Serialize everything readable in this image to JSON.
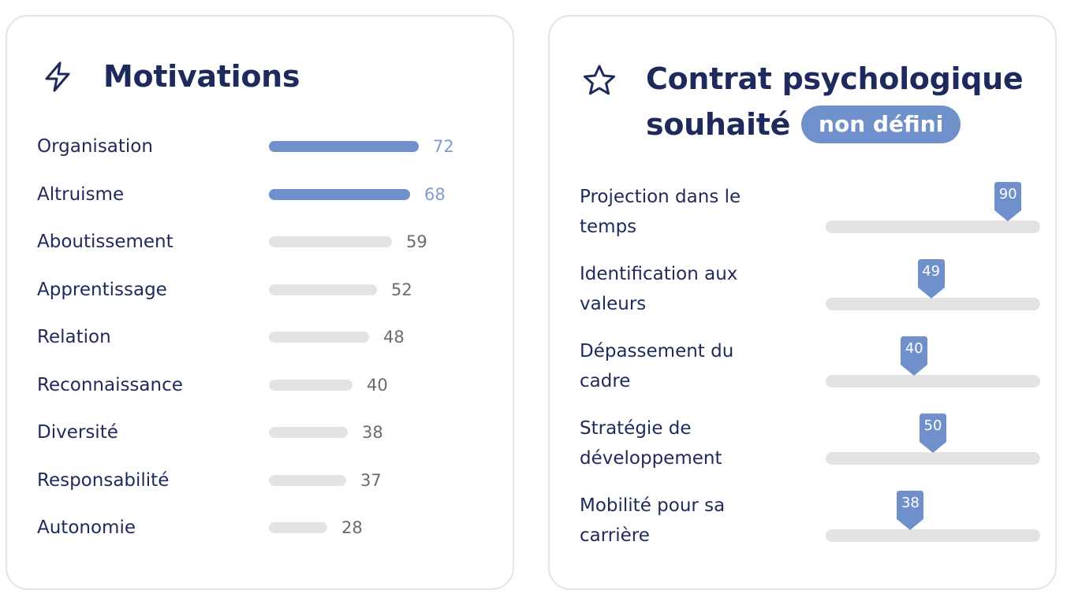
{
  "motivations": {
    "title": "Motivations",
    "icon": "lightning-icon",
    "items": [
      {
        "label": "Organisation",
        "value": 72,
        "highlight": true
      },
      {
        "label": "Altruisme",
        "value": 68,
        "highlight": true
      },
      {
        "label": "Aboutissement",
        "value": 59,
        "highlight": false
      },
      {
        "label": "Apprentissage",
        "value": 52,
        "highlight": false
      },
      {
        "label": "Relation",
        "value": 48,
        "highlight": false
      },
      {
        "label": "Reconnaissance",
        "value": 40,
        "highlight": false
      },
      {
        "label": "Diversité",
        "value": 38,
        "highlight": false
      },
      {
        "label": "Responsabilité",
        "value": 37,
        "highlight": false
      },
      {
        "label": "Autonomie",
        "value": 28,
        "highlight": false
      }
    ]
  },
  "contrat": {
    "title_line1": "Contrat psychologique",
    "title_line2": "souhaité",
    "badge": "non défini",
    "icon": "star-icon",
    "items": [
      {
        "label": "Projection dans le temps",
        "value": 90
      },
      {
        "label": "Identification aux valeurs",
        "value": 49
      },
      {
        "label": "Dépassement du cadre",
        "value": 40
      },
      {
        "label": "Stratégie de développement",
        "value": 50
      },
      {
        "label": "Mobilité pour sa carrière",
        "value": 38
      }
    ]
  },
  "colors": {
    "accent": "#7090cc",
    "text": "#1f2a5c",
    "track": "#e3e3e3",
    "value_text": "#6b6b6b"
  }
}
